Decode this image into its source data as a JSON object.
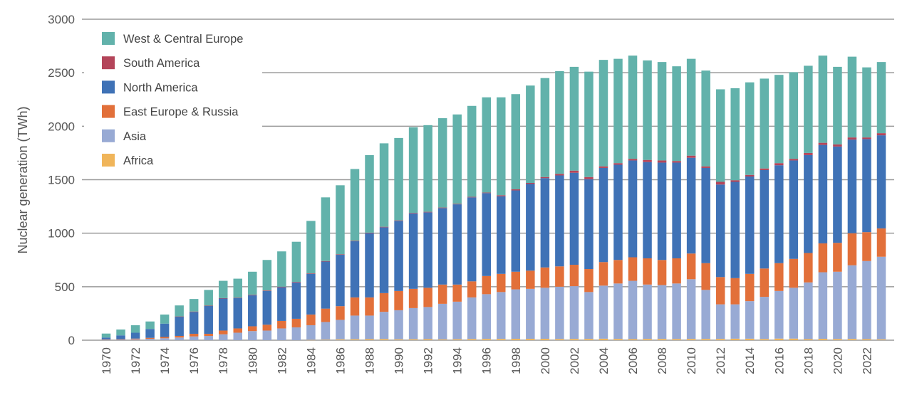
{
  "chart_data": {
    "type": "bar",
    "stacked": true,
    "title": "",
    "xlabel": "",
    "ylabel": "Nuclear generation (TWh)",
    "ylim": [
      0,
      3000
    ],
    "yticks": [
      0,
      500,
      1000,
      1500,
      2000,
      2500,
      3000
    ],
    "grid": true,
    "legend_position": "top-left",
    "categories": [
      1970,
      1971,
      1972,
      1973,
      1974,
      1975,
      1976,
      1977,
      1978,
      1979,
      1980,
      1981,
      1982,
      1983,
      1984,
      1985,
      1986,
      1987,
      1988,
      1989,
      1990,
      1991,
      1992,
      1993,
      1994,
      1995,
      1996,
      1997,
      1998,
      1999,
      2000,
      2001,
      2002,
      2003,
      2004,
      2005,
      2006,
      2007,
      2008,
      2009,
      2010,
      2011,
      2012,
      2013,
      2014,
      2015,
      2016,
      2017,
      2018,
      2019,
      2020,
      2021,
      2022,
      2023
    ],
    "xtick_labels": [
      "1970",
      "1972",
      "1974",
      "1976",
      "1978",
      "1980",
      "1982",
      "1984",
      "1986",
      "1988",
      "1990",
      "1992",
      "1994",
      "1996",
      "1998",
      "2000",
      "2002",
      "2004",
      "2006",
      "2008",
      "2010",
      "2012",
      "2014",
      "2016",
      "2018",
      "2020",
      "2022"
    ],
    "series": [
      {
        "name": "Africa",
        "color": "#f0b55a",
        "values": [
          0,
          0,
          0,
          0,
          0,
          0,
          0,
          0,
          0,
          0,
          0,
          0,
          0,
          0,
          3,
          5,
          8,
          9,
          10,
          11,
          8,
          9,
          10,
          7,
          9,
          11,
          12,
          12,
          13,
          13,
          13,
          11,
          12,
          12,
          14,
          12,
          10,
          12,
          12,
          11,
          12,
          12,
          12,
          14,
          14,
          11,
          15,
          15,
          10,
          13,
          11,
          12,
          10,
          8
        ]
      },
      {
        "name": "Asia",
        "color": "#98aad4",
        "values": [
          5,
          6,
          8,
          12,
          18,
          25,
          35,
          40,
          55,
          70,
          85,
          90,
          110,
          120,
          137,
          165,
          182,
          221,
          220,
          254,
          272,
          291,
          300,
          333,
          351,
          389,
          418,
          438,
          462,
          467,
          477,
          489,
          493,
          438,
          496,
          518,
          545,
          508,
          503,
          519,
          558,
          458,
          323,
          321,
          351,
          394,
          445,
          475,
          530,
          622,
          629,
          688,
          730,
          772
        ]
      },
      {
        "name": "East Europe & Russia",
        "color": "#e2703a",
        "values": [
          3,
          4,
          7,
          10,
          12,
          15,
          25,
          20,
          35,
          40,
          45,
          55,
          70,
          80,
          100,
          125,
          128,
          170,
          170,
          175,
          180,
          180,
          180,
          180,
          160,
          150,
          170,
          170,
          165,
          170,
          190,
          190,
          200,
          215,
          220,
          220,
          220,
          245,
          235,
          235,
          240,
          250,
          255,
          245,
          255,
          265,
          260,
          270,
          275,
          270,
          270,
          300,
          270,
          265
        ]
      },
      {
        "name": "North America",
        "color": "#3f72b6",
        "values": [
          17,
          35,
          55,
          83,
          125,
          180,
          205,
          260,
          300,
          285,
          290,
          315,
          315,
          340,
          380,
          440,
          480,
          525,
          600,
          615,
          655,
          705,
          705,
          715,
          750,
          785,
          775,
          725,
          760,
          810,
          835,
          850,
          860,
          840,
          880,
          890,
          905,
          900,
          910,
          895,
          895,
          890,
          865,
          900,
          910,
          920,
          915,
          920,
          915,
          920,
          900,
          875,
          870,
          870
        ]
      },
      {
        "name": "South America",
        "color": "#b4455a",
        "values": [
          0,
          0,
          0,
          0,
          0,
          2,
          3,
          3,
          3,
          3,
          5,
          5,
          5,
          5,
          5,
          5,
          5,
          5,
          5,
          5,
          5,
          5,
          5,
          5,
          5,
          5,
          5,
          10,
          10,
          10,
          10,
          15,
          20,
          20,
          15,
          15,
          15,
          20,
          20,
          15,
          20,
          15,
          25,
          15,
          15,
          15,
          20,
          15,
          20,
          20,
          20,
          20,
          15,
          20
        ]
      },
      {
        "name": "West & Central Europe",
        "color": "#62b2ab",
        "values": [
          37,
          55,
          70,
          70,
          85,
          103,
          117,
          147,
          162,
          177,
          215,
          285,
          330,
          375,
          490,
          595,
          645,
          670,
          725,
          780,
          770,
          800,
          810,
          835,
          835,
          850,
          890,
          915,
          890,
          910,
          925,
          960,
          970,
          985,
          995,
          975,
          965,
          930,
          920,
          885,
          905,
          895,
          865,
          860,
          865,
          840,
          825,
          810,
          815,
          815,
          725,
          755,
          655,
          665
        ]
      }
    ]
  }
}
